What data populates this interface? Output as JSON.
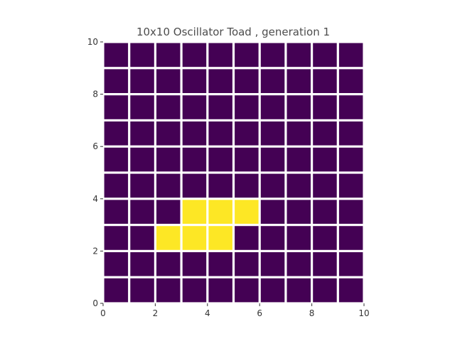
{
  "chart_data": {
    "type": "heatmap",
    "title": "10x10 Oscillator Toad , generation 1",
    "xlabel": "",
    "ylabel": "",
    "xlim": [
      0,
      10
    ],
    "ylim": [
      0,
      10
    ],
    "x_ticks": [
      "0",
      "2",
      "4",
      "6",
      "8",
      "10"
    ],
    "y_ticks": [
      "0",
      "2",
      "4",
      "6",
      "8",
      "10"
    ],
    "grid": true,
    "cmap": {
      "dead": "#440154",
      "alive": "#fde725",
      "gridline": "#ffffff"
    },
    "rows_top_to_bottom": [
      [
        0,
        0,
        0,
        0,
        0,
        0,
        0,
        0,
        0,
        0
      ],
      [
        0,
        0,
        0,
        0,
        0,
        0,
        0,
        0,
        0,
        0
      ],
      [
        0,
        0,
        0,
        0,
        0,
        0,
        0,
        0,
        0,
        0
      ],
      [
        0,
        0,
        0,
        0,
        0,
        0,
        0,
        0,
        0,
        0
      ],
      [
        0,
        0,
        0,
        0,
        0,
        0,
        0,
        0,
        0,
        0
      ],
      [
        0,
        0,
        0,
        0,
        0,
        0,
        0,
        0,
        0,
        0
      ],
      [
        0,
        0,
        0,
        1,
        1,
        1,
        0,
        0,
        0,
        0
      ],
      [
        0,
        0,
        1,
        1,
        1,
        0,
        0,
        0,
        0,
        0
      ],
      [
        0,
        0,
        0,
        0,
        0,
        0,
        0,
        0,
        0,
        0
      ],
      [
        0,
        0,
        0,
        0,
        0,
        0,
        0,
        0,
        0,
        0
      ]
    ]
  }
}
